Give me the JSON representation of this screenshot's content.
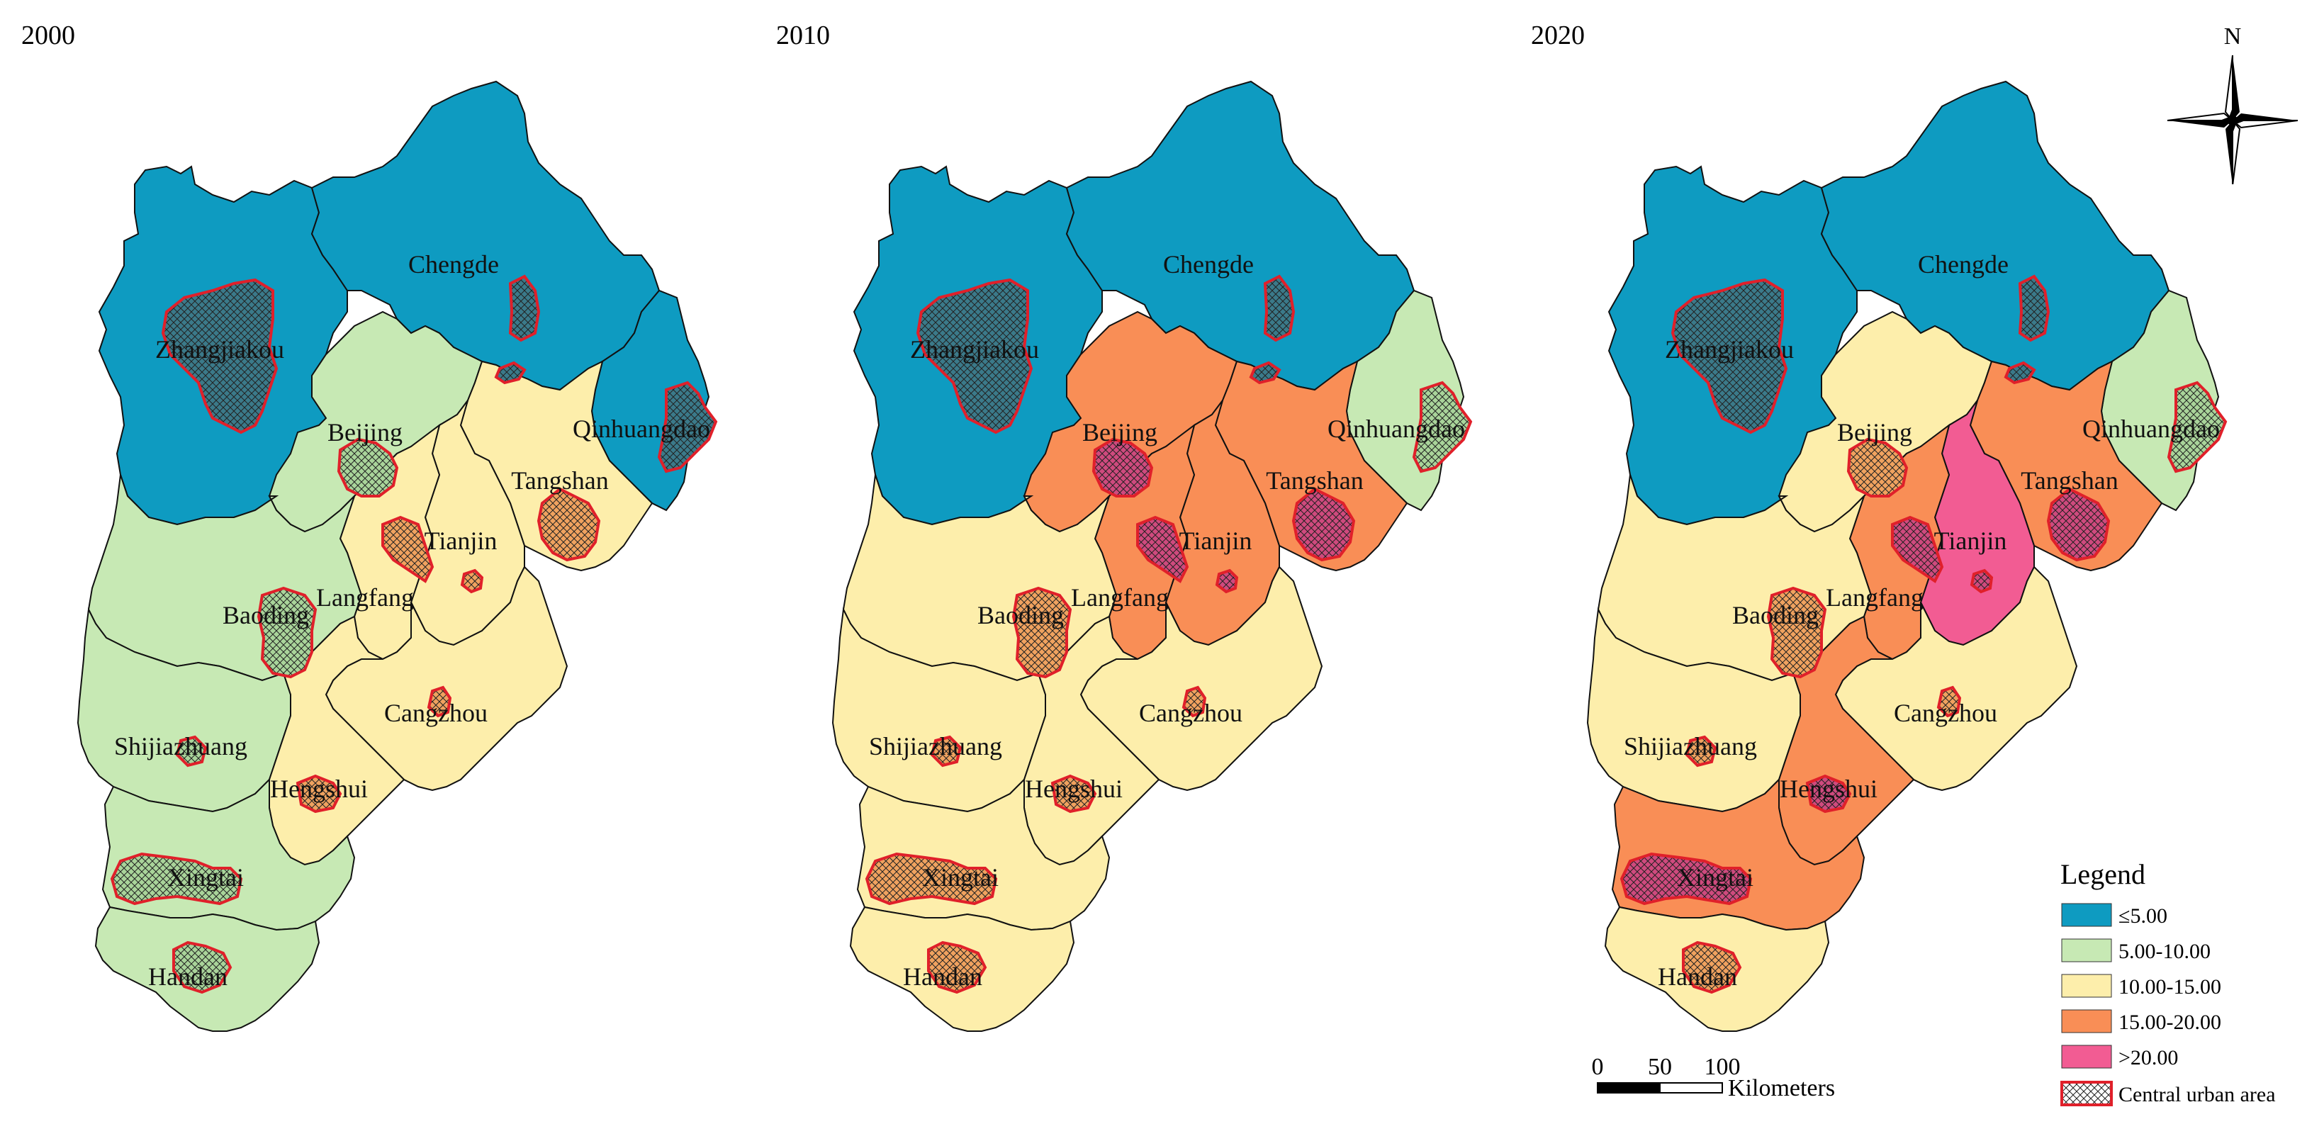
{
  "panels": [
    {
      "year": "2000",
      "classes": {
        "Zhangjiakou": "≤5.00",
        "Chengde": "≤5.00",
        "Qinhuangdao": "≤5.00",
        "Beijing": "5.00-10.00",
        "Baoding": "5.00-10.00",
        "Shijiazhuang": "5.00-10.00",
        "Xingtai": "5.00-10.00",
        "Handan": "5.00-10.00",
        "Tianjin": "10.00-15.00",
        "Tangshan": "10.00-15.00",
        "Langfang": "10.00-15.00",
        "Cangzhou": "10.00-15.00",
        "Hengshui": "10.00-15.00"
      }
    },
    {
      "year": "2010",
      "classes": {
        "Zhangjiakou": "≤5.00",
        "Chengde": "≤5.00",
        "Qinhuangdao": "5.00-10.00",
        "Beijing": "15.00-20.00",
        "Tianjin": "15.00-20.00",
        "Tangshan": "15.00-20.00",
        "Langfang": "15.00-20.00",
        "Baoding": "10.00-15.00",
        "Shijiazhuang": "10.00-15.00",
        "Cangzhou": "10.00-15.00",
        "Hengshui": "10.00-15.00",
        "Xingtai": "10.00-15.00",
        "Handan": "10.00-15.00"
      }
    },
    {
      "year": "2020",
      "classes": {
        "Zhangjiakou": "≤5.00",
        "Chengde": "≤5.00",
        "Qinhuangdao": "5.00-10.00",
        "Beijing": "10.00-15.00",
        "Baoding": "10.00-15.00",
        "Shijiazhuang": "10.00-15.00",
        "Cangzhou": "10.00-15.00",
        "Handan": "10.00-15.00",
        "Tianjin": ">20.00",
        "Tangshan": "15.00-20.00",
        "Langfang": "15.00-20.00",
        "Hengshui": "15.00-20.00",
        "Xingtai": "15.00-20.00"
      }
    }
  ],
  "city_names": [
    "Zhangjiakou",
    "Chengde",
    "Beijing",
    "Qinhuangdao",
    "Tangshan",
    "Tianjin",
    "Langfang",
    "Baoding",
    "Cangzhou",
    "Shijiazhuang",
    "Hengshui",
    "Xingtai",
    "Handan"
  ],
  "urban_fill_by_class": {
    "≤5.00": "#3b7a8a",
    "5.00-10.00": "#a9d49a",
    "10.00-15.00": "#f0a25f",
    "15.00-20.00": "#cf4a7e",
    "default": "#cf4a7e"
  },
  "legend": {
    "title": "Legend",
    "items": [
      {
        "label": "≤5.00",
        "color": "#0e9bc1"
      },
      {
        "label": "5.00-10.00",
        "color": "#c7e9b4"
      },
      {
        "label": "10.00-15.00",
        "color": "#fdeeab"
      },
      {
        "label": "15.00-20.00",
        "color": "#f98e56"
      },
      {
        "label": ">20.00",
        "color": "#f25c93"
      }
    ],
    "urban_label": "Central urban area",
    "urban_outline_color": "#e0202a"
  },
  "scale_bar": {
    "ticks": [
      "0",
      "50",
      "100"
    ],
    "unit": "Kilometers"
  },
  "north_arrow": {
    "label": "N"
  }
}
